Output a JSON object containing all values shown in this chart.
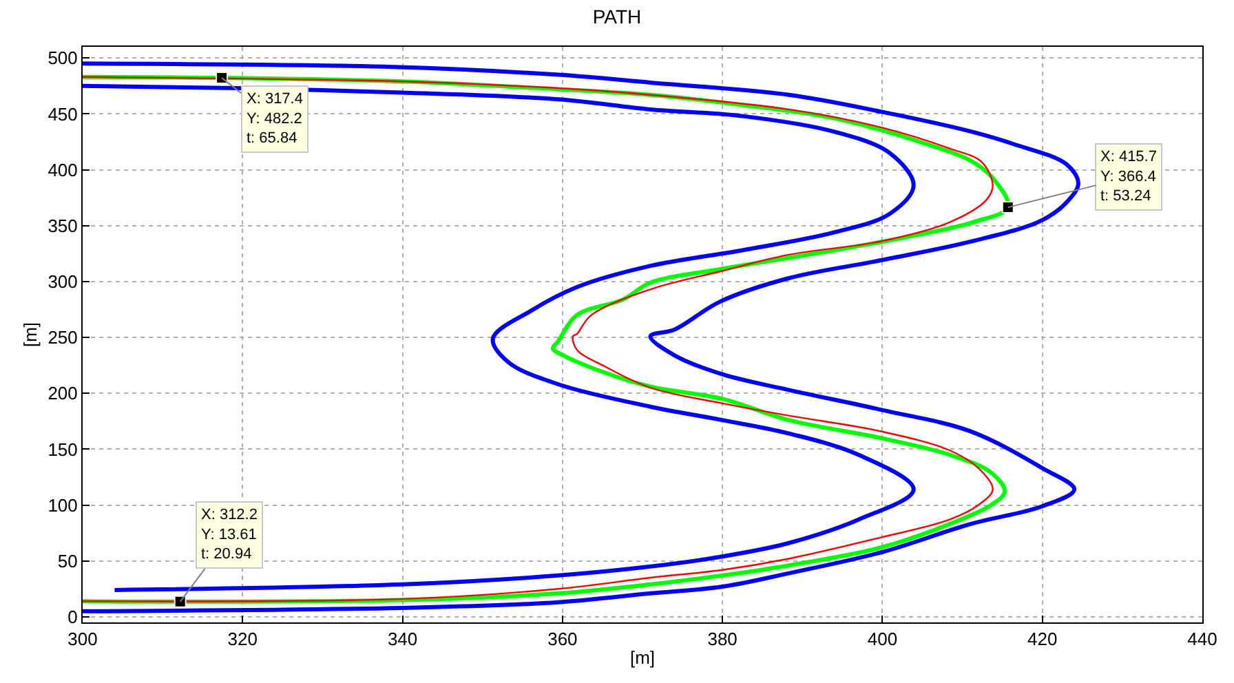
{
  "chart_data": {
    "type": "line",
    "title": "PATH",
    "xlabel": "[m]",
    "ylabel": "[m]",
    "xlim": [
      300,
      440
    ],
    "ylim": [
      -5,
      510
    ],
    "xticks": [
      300,
      320,
      340,
      360,
      380,
      400,
      420,
      440
    ],
    "yticks": [
      0,
      50,
      100,
      150,
      200,
      250,
      300,
      350,
      400,
      450,
      500
    ],
    "grid": true,
    "marker": "none",
    "line_style": "solid",
    "series": [
      {
        "color": "#0000ff",
        "x": [
          300,
          340,
          359.5,
          371,
          380,
          388.3,
          400,
          411,
          420,
          424,
          420,
          411,
          400,
          388.3,
          380,
          374,
          371,
          374,
          379.7,
          388.3,
          399.8,
          411.2,
          420,
          423.3,
          424.5,
          423,
          416.4,
          411.2,
          399.8,
          388.3,
          371,
          359.5,
          338.8,
          300
        ],
        "values": [
          5,
          8,
          13,
          21,
          27,
          39,
          58,
          83,
          99,
          114,
          133,
          166,
          185,
          203,
          217,
          234,
          251,
          257,
          282,
          303,
          319,
          336,
          355,
          373,
          388,
          405,
          423,
          434,
          452,
          467,
          478,
          485,
          492,
          495
        ]
      },
      {
        "color": "#0000ff",
        "x": [
          304,
          340,
          359.5,
          371,
          380,
          388.3,
          397,
          403.9,
          397,
          388.3,
          380,
          371,
          359.5,
          353.2,
          351.3,
          356.1,
          361.8,
          371,
          382.5,
          394,
          401,
          403.9,
          400.9,
          394,
          382.5,
          371,
          359.5,
          340,
          319.3,
          300
        ],
        "values": [
          24,
          29,
          37,
          45,
          54,
          66,
          87,
          114,
          145,
          164,
          176,
          188,
          208,
          228,
          249,
          274,
          295,
          314,
          328,
          344,
          361,
          386,
          415,
          434,
          448,
          454,
          463,
          469,
          473,
          475
        ]
      },
      {
        "color": "#00ff00",
        "x": [
          300,
          312.2,
          340,
          359.5,
          371,
          380,
          388.3,
          399.8,
          408.4,
          413.6,
          415.3,
          413.6,
          408.4,
          399.8,
          388.3,
          380,
          371,
          364.7,
          360.1,
          358.8,
          359.5,
          361.8,
          367.6,
          371,
          379.7,
          394,
          403.2,
          411.3,
          415.7,
          414.1,
          411.3,
          405.5,
          394,
          382.5,
          371,
          359.5,
          340,
          317.4,
          300
        ],
        "values": [
          14,
          13.61,
          15,
          21,
          29,
          37,
          46,
          62,
          83,
          100,
          112,
          129,
          145,
          160,
          176,
          195,
          206,
          220,
          234,
          240,
          247,
          270,
          284,
          299,
          311,
          328,
          340,
          353,
          366.4,
          390,
          407,
          423,
          446,
          458,
          467,
          472,
          479,
          482.2,
          483
        ]
      },
      {
        "color": "#ff0000",
        "x": [
          300,
          340,
          359.5,
          371,
          380,
          388.3,
          399.8,
          408.4,
          412,
          413.8,
          412,
          408.4,
          399.8,
          388.3,
          380,
          371,
          365.3,
          361.8,
          361.3,
          361.8,
          363.6,
          371,
          379.7,
          388.3,
          399.8,
          408.4,
          413,
          413.8,
          412.4,
          408.4,
          399.8,
          388.3,
          371,
          359.5,
          340,
          300
        ],
        "values": [
          14,
          16,
          25,
          35,
          42,
          52,
          71,
          87,
          100,
          114,
          133,
          149,
          166,
          180,
          191,
          205,
          224,
          239,
          251,
          253,
          270,
          293,
          309,
          324,
          336,
          353,
          373,
          386,
          407,
          419,
          438,
          454,
          467,
          473,
          479,
          483
        ]
      }
    ],
    "annotations": [
      {
        "text": "X: 317.4\nY: 482.2\nt: 65.84",
        "x": 317.4,
        "y": 482.2
      },
      {
        "text": "X: 415.7\nY: 366.4\nt: 53.24",
        "x": 415.7,
        "y": 366.4
      },
      {
        "text": "X: 312.2\nY: 13.61\nt: 20.94",
        "x": 312.2,
        "y": 13.61
      }
    ]
  }
}
